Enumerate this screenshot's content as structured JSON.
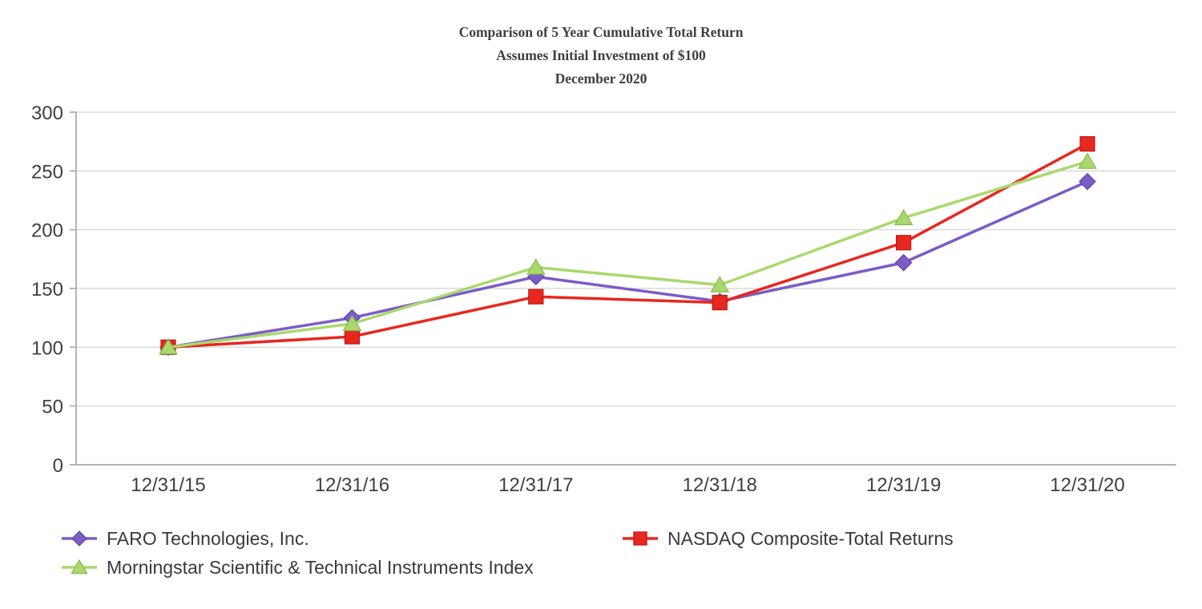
{
  "title": {
    "line1": "Comparison of 5 Year Cumulative Total Return",
    "line2": "Assumes Initial Investment of $100",
    "line3": "December 2020"
  },
  "chart_data": {
    "type": "line",
    "categories": [
      "12/31/15",
      "12/31/16",
      "12/31/17",
      "12/31/18",
      "12/31/19",
      "12/31/20"
    ],
    "series": [
      {
        "name": "FARO Technologies, Inc.",
        "marker": "diamond",
        "color": "#7B5CC8",
        "edge": "#5f46a3",
        "values": [
          100,
          125,
          160,
          139,
          172,
          241
        ]
      },
      {
        "name": "NASDAQ Composite-Total Returns",
        "marker": "square",
        "color": "#E8271E",
        "edge": "#b81a14",
        "values": [
          100,
          109,
          143,
          138,
          189,
          273
        ]
      },
      {
        "name": "Morningstar Scientific & Technical Instruments Index",
        "marker": "triangle",
        "color": "#A8D96C",
        "edge": "#86b94e",
        "values": [
          100,
          120,
          168,
          153,
          210,
          258
        ]
      }
    ],
    "ylim": [
      0,
      300
    ],
    "ytick_step": 50,
    "yticks": [
      0,
      50,
      100,
      150,
      200,
      250,
      300
    ],
    "grid": true,
    "legend_position": "bottom",
    "axis_color": "#b3b3b3",
    "grid_color": "#dadada",
    "label_color": "#3f3f3f"
  }
}
